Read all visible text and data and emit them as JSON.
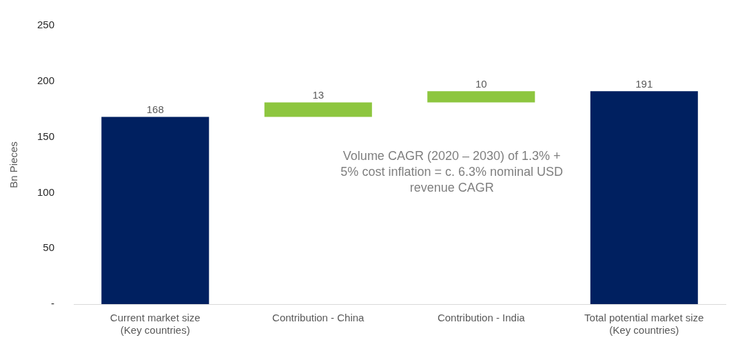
{
  "chart_data": {
    "type": "bar",
    "ylabel": "Bn Pieces",
    "categories": [
      "Current market size\n(Key countries)",
      "Contribution - China",
      "Contribution - India",
      "Total potential market size\n(Key countries)"
    ],
    "values": [
      168,
      13,
      10,
      191
    ],
    "base": [
      0,
      168,
      181,
      0
    ],
    "colors": [
      "#002060",
      "#8dc63f",
      "#8dc63f",
      "#002060"
    ],
    "ylim": [
      0,
      250
    ],
    "yticks": [
      {
        "value": 0,
        "label": "-"
      },
      50,
      100,
      150,
      200,
      250
    ],
    "grid": false,
    "legend": false,
    "data_labels": true,
    "annotations": [
      "Volume CAGR (2020 – 2030) of 1.3% +\n5% cost inflation = c. 6.3% nominal USD\nrevenue CAGR"
    ]
  }
}
